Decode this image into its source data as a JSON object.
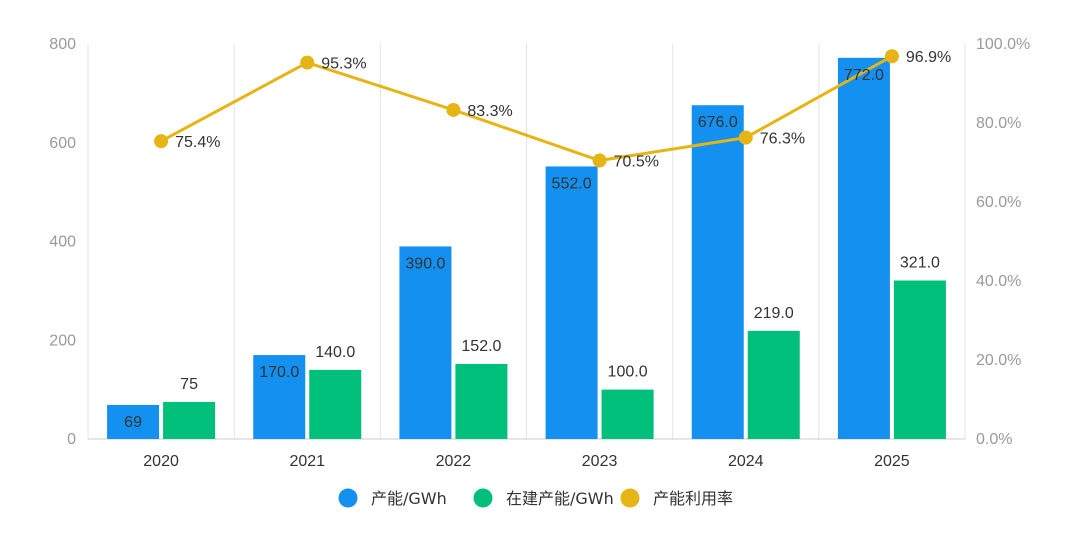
{
  "chart_data": {
    "type": "bar",
    "categories": [
      "2020",
      "2021",
      "2022",
      "2023",
      "2024",
      "2025"
    ],
    "series": [
      {
        "name": "产能/GWh",
        "type": "bar",
        "axis": "left",
        "color": "#1490F0",
        "values": [
          69,
          170,
          390,
          552,
          676,
          772
        ],
        "labels": [
          "69",
          "170.0",
          "390.0",
          "552.0",
          "676.0",
          "772.0"
        ]
      },
      {
        "name": "在建产能/GWh",
        "type": "bar",
        "axis": "left",
        "color": "#00BF7A",
        "values": [
          75,
          140,
          152,
          100,
          219,
          321
        ],
        "labels": [
          "75",
          "140.0",
          "152.0",
          "100.0",
          "219.0",
          "321.0"
        ]
      },
      {
        "name": "产能利用率",
        "type": "line",
        "axis": "right",
        "color": "#E6B414",
        "values": [
          75.4,
          95.3,
          83.3,
          70.5,
          76.3,
          96.9
        ],
        "labels": [
          "75.4%",
          "95.3%",
          "83.3%",
          "70.5%",
          "76.3%",
          "96.9%"
        ]
      }
    ],
    "y_left": {
      "ylim": [
        0,
        800
      ],
      "ticks": [
        "0",
        "200",
        "400",
        "600",
        "800"
      ]
    },
    "y_right": {
      "ylim": [
        0,
        100
      ],
      "ticks": [
        "0.0%",
        "20.0%",
        "40.0%",
        "60.0%",
        "80.0%",
        "100.0%"
      ]
    },
    "grid": "vertical",
    "legend_position": "bottom"
  }
}
